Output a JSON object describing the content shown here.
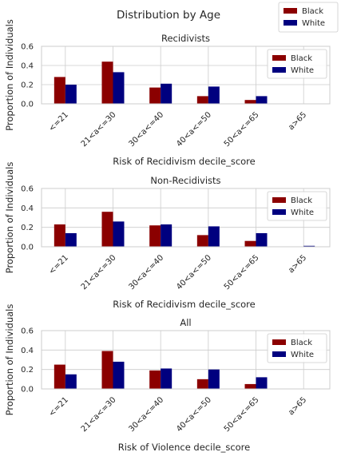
{
  "figure": {
    "title": "Distribution by Age",
    "legend": [
      {
        "label": "Black",
        "color": "#8b0000"
      },
      {
        "label": "White",
        "color": "#00007f"
      }
    ]
  },
  "chart_data": [
    {
      "type": "bar",
      "title": "Recidivists",
      "xlabel": "Risk of Recidivism decile_score",
      "ylabel": "Proportion of Individuals",
      "ylim": [
        0,
        0.6
      ],
      "yticks": [
        "0.0",
        "0.2",
        "0.4",
        "0.6"
      ],
      "grid": true,
      "legend_position": "top-right",
      "categories": [
        "<=21",
        "21<a<=30",
        "30<a<=40",
        "40<a<=50",
        "50<a<=65",
        "a>65"
      ],
      "series": [
        {
          "name": "Black",
          "color": "#8b0000",
          "values": [
            0.28,
            0.44,
            0.17,
            0.08,
            0.04,
            0.0
          ]
        },
        {
          "name": "White",
          "color": "#00007f",
          "values": [
            0.2,
            0.33,
            0.21,
            0.18,
            0.08,
            0.0
          ]
        }
      ]
    },
    {
      "type": "bar",
      "title": "Non-Recidivists",
      "xlabel": "Risk of Recidivism decile_score",
      "ylabel": "Proportion of Individuals",
      "ylim": [
        0,
        0.6
      ],
      "yticks": [
        "0.0",
        "0.2",
        "0.4",
        "0.6"
      ],
      "grid": true,
      "legend_position": "top-right",
      "categories": [
        "<=21",
        "21<a<=30",
        "30<a<=40",
        "40<a<=50",
        "50<a<=65",
        "a>65"
      ],
      "series": [
        {
          "name": "Black",
          "color": "#8b0000",
          "values": [
            0.23,
            0.36,
            0.22,
            0.12,
            0.06,
            0.0
          ]
        },
        {
          "name": "White",
          "color": "#00007f",
          "values": [
            0.14,
            0.26,
            0.23,
            0.21,
            0.14,
            0.01
          ]
        }
      ]
    },
    {
      "type": "bar",
      "title": "All",
      "xlabel": "Risk of Violence decile_score",
      "ylabel": "Proportion of Individuals",
      "ylim": [
        0,
        0.6
      ],
      "yticks": [
        "0.0",
        "0.2",
        "0.4",
        "0.6"
      ],
      "grid": true,
      "legend_position": "top-right",
      "categories": [
        "<=21",
        "21<a<=30",
        "30<a<=40",
        "40<a<=50",
        "50<a<=65",
        "a>65"
      ],
      "series": [
        {
          "name": "Black",
          "color": "#8b0000",
          "values": [
            0.25,
            0.39,
            0.19,
            0.1,
            0.05,
            0.0
          ]
        },
        {
          "name": "White",
          "color": "#00007f",
          "values": [
            0.15,
            0.28,
            0.21,
            0.2,
            0.12,
            0.0
          ]
        }
      ]
    }
  ]
}
